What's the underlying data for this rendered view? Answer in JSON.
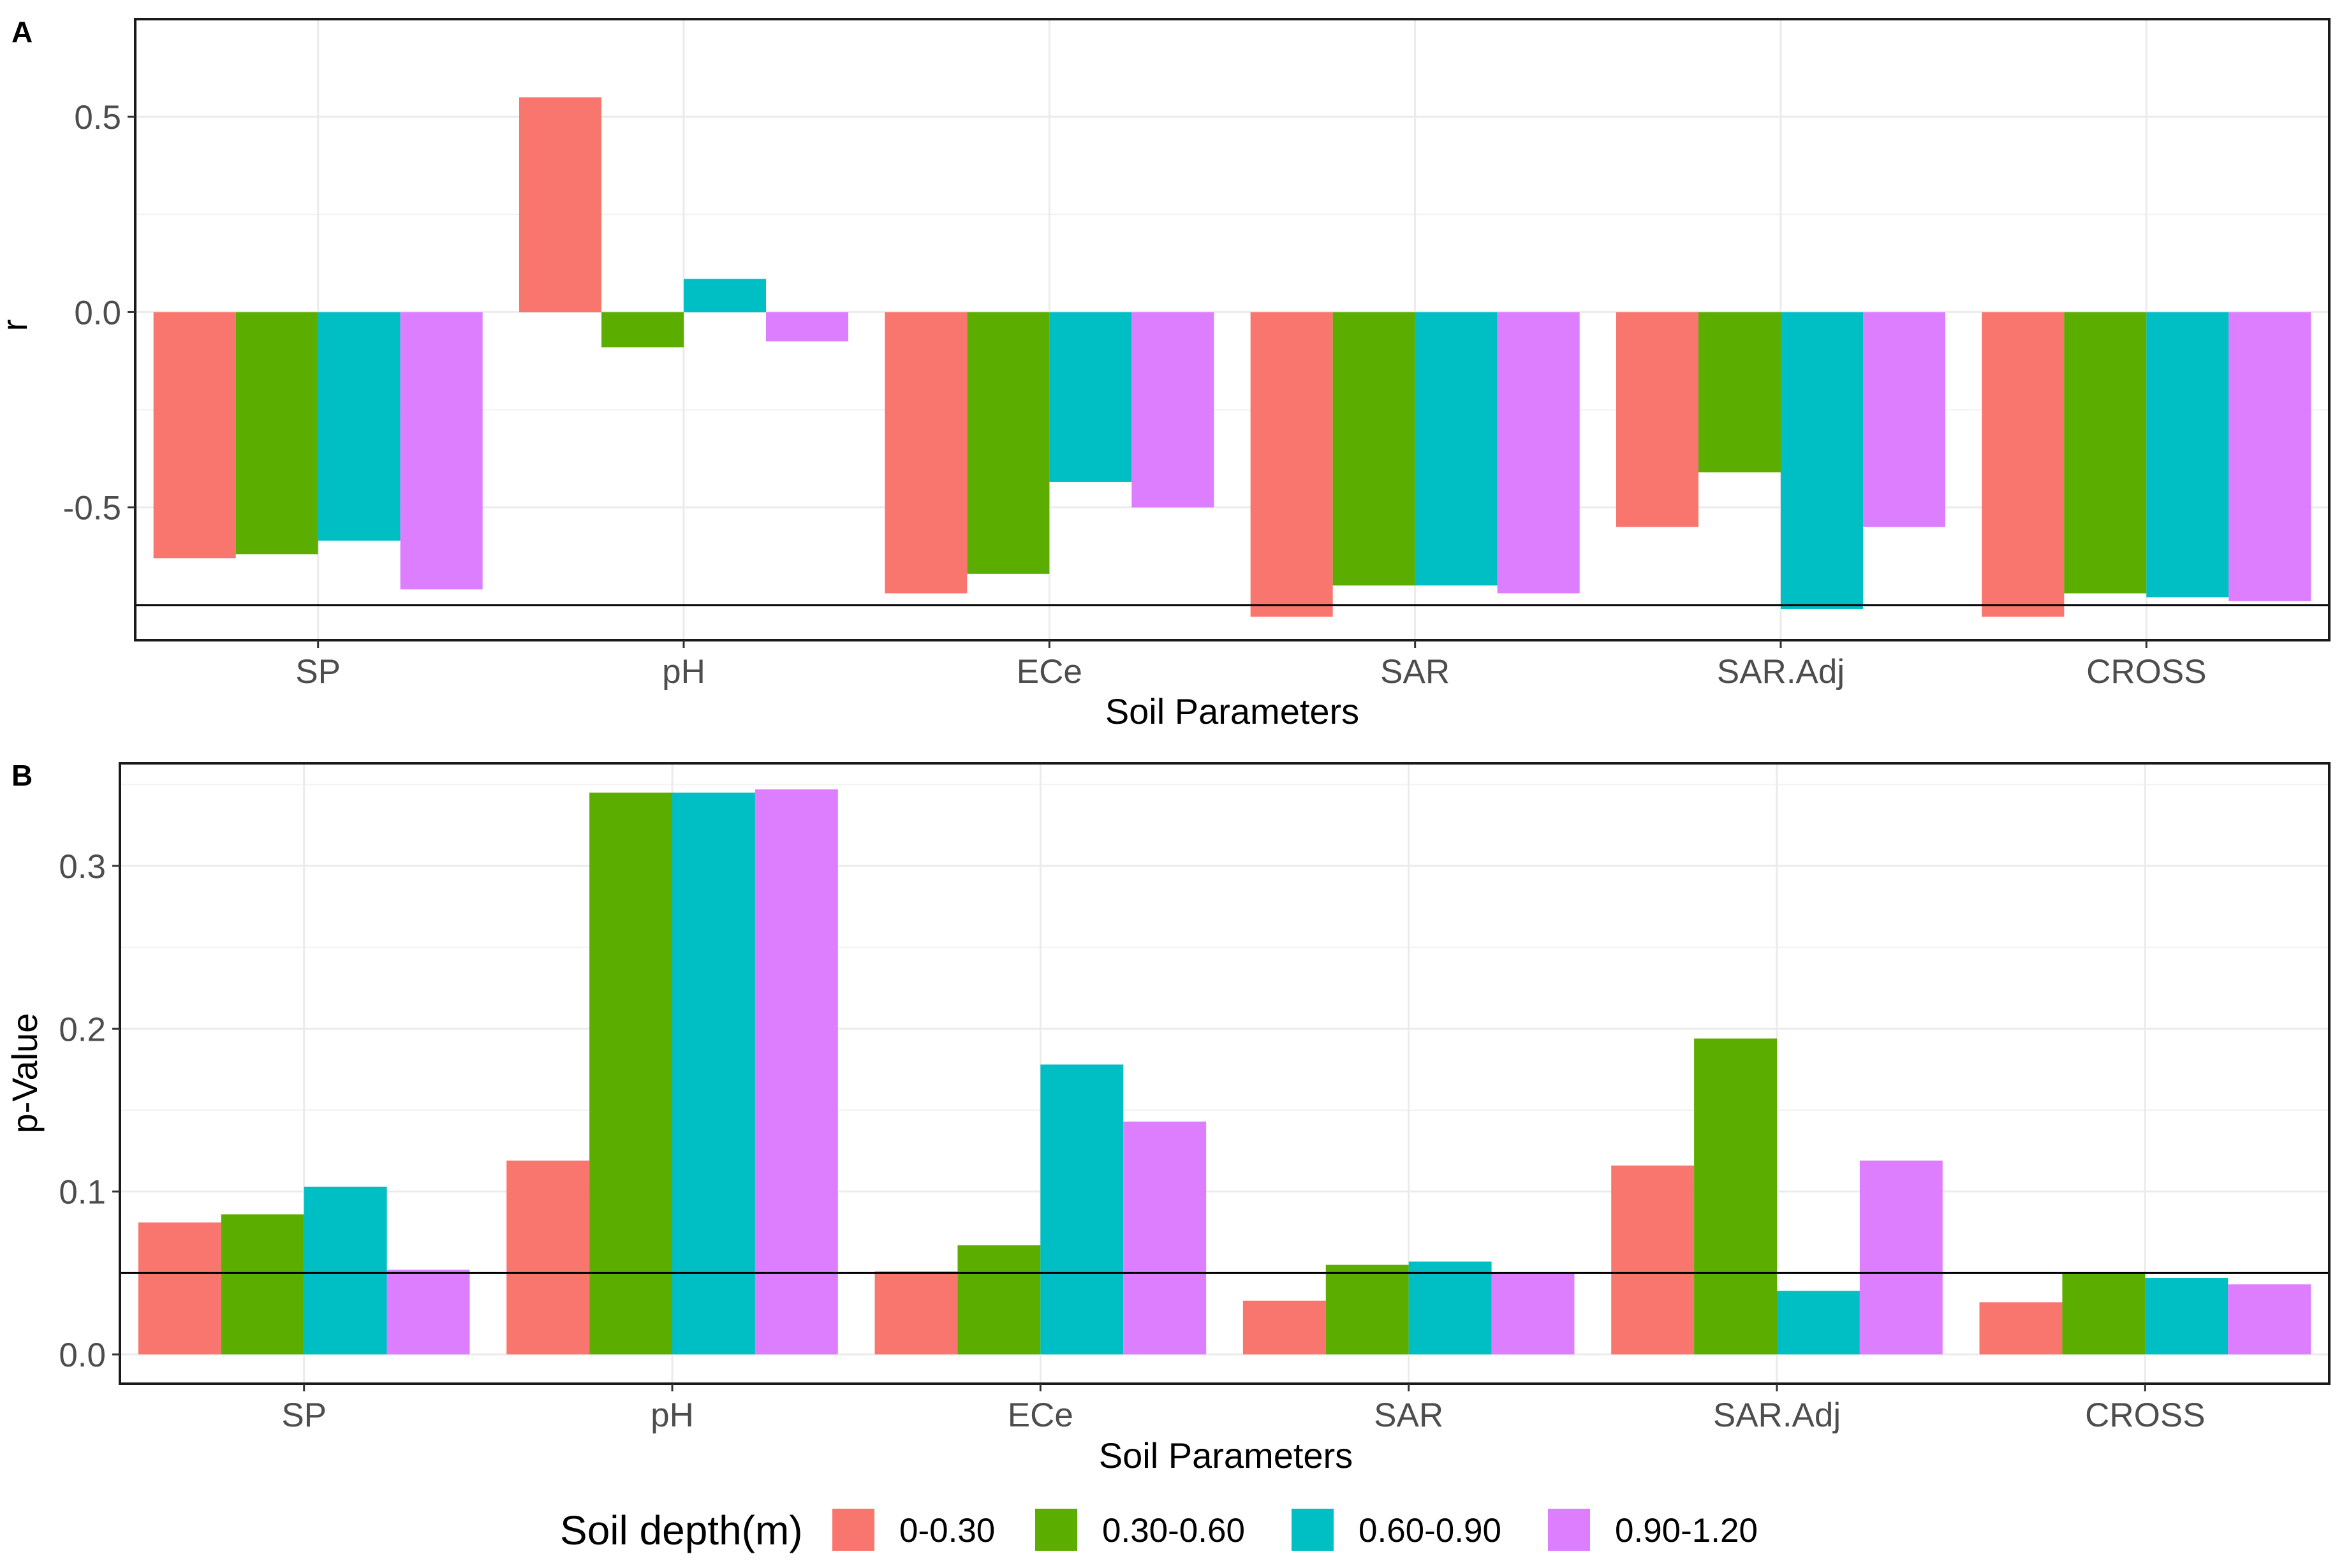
{
  "legend": {
    "title": "Soil depth(m)",
    "entries": [
      {
        "label": "0-0.30",
        "color": "#F8766D"
      },
      {
        "label": "0.30-0.60",
        "color": "#5BAE00"
      },
      {
        "label": "0.60-0.90",
        "color": "#00BFC4"
      },
      {
        "label": "0.90-1.20",
        "color": "#DC7EFF"
      }
    ]
  },
  "chart_data": [
    {
      "panel": "A",
      "type": "bar",
      "xlabel": "Soil Parameters",
      "ylabel": "r",
      "categories": [
        "SP",
        "pH",
        "ECe",
        "SAR",
        "SAR.Adj",
        "CROSS"
      ],
      "ylim": [
        -0.84,
        0.75
      ],
      "yticks": [
        0.5,
        0.0,
        -0.5
      ],
      "ytick_labels": [
        "0.5",
        "0.0",
        "-0.5"
      ],
      "hlines": [
        0.75,
        -0.75
      ],
      "series": [
        {
          "name": "0-0.30",
          "values": [
            -0.63,
            0.55,
            -0.72,
            -0.78,
            -0.55,
            -0.78
          ]
        },
        {
          "name": "0.30-0.60",
          "values": [
            -0.62,
            -0.09,
            -0.67,
            -0.7,
            -0.41,
            -0.72
          ]
        },
        {
          "name": "0.60-0.90",
          "values": [
            -0.585,
            0.085,
            -0.435,
            -0.7,
            -0.76,
            -0.73
          ]
        },
        {
          "name": "0.90-1.20",
          "values": [
            -0.71,
            -0.075,
            -0.5,
            -0.72,
            -0.55,
            -0.74
          ]
        }
      ]
    },
    {
      "panel": "B",
      "type": "bar",
      "xlabel": "Soil Parameters",
      "ylabel": "p-Value",
      "categories": [
        "SP",
        "pH",
        "ECe",
        "SAR",
        "SAR.Adj",
        "CROSS"
      ],
      "ylim": [
        -0.018,
        0.363
      ],
      "yticks": [
        0.0,
        0.1,
        0.2,
        0.3
      ],
      "ytick_labels": [
        "0.0",
        "0.1",
        "0.2",
        "0.3"
      ],
      "hlines": [
        0.05
      ],
      "series": [
        {
          "name": "0-0.30",
          "values": [
            0.081,
            0.119,
            0.051,
            0.033,
            0.116,
            0.032
          ]
        },
        {
          "name": "0.30-0.60",
          "values": [
            0.086,
            0.345,
            0.067,
            0.055,
            0.194,
            0.05
          ]
        },
        {
          "name": "0.60-0.90",
          "values": [
            0.103,
            0.345,
            0.178,
            0.057,
            0.039,
            0.047
          ]
        },
        {
          "name": "0.90-1.20",
          "values": [
            0.052,
            0.347,
            0.143,
            0.05,
            0.119,
            0.043
          ]
        }
      ]
    }
  ]
}
